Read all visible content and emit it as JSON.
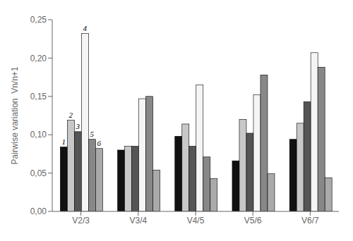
{
  "chart_data": {
    "type": "bar",
    "categories": [
      "V2/3",
      "V3/4",
      "V4/5",
      "V5/6",
      "V6/7"
    ],
    "series": [
      {
        "color": "#111111",
        "values": [
          0.084,
          0.08,
          0.098,
          0.066,
          0.094
        ]
      },
      {
        "color": "#c8c8c8",
        "values": [
          0.119,
          0.085,
          0.114,
          0.12,
          0.115
        ]
      },
      {
        "color": "#555555",
        "values": [
          0.104,
          0.085,
          0.085,
          0.102,
          0.143
        ]
      },
      {
        "color": "#f5f5f5",
        "values": [
          0.232,
          0.147,
          0.165,
          0.152,
          0.207
        ]
      },
      {
        "color": "#888888",
        "values": [
          0.094,
          0.15,
          0.071,
          0.178,
          0.188
        ]
      },
      {
        "color": "#aaaaaa",
        "values": [
          0.082,
          0.054,
          0.043,
          0.049,
          0.044
        ]
      }
    ],
    "ylabel": "Pairwise variation  Vn/n+1",
    "ylim": [
      0.0,
      0.25
    ],
    "yticks": [
      {
        "value": 0.0,
        "label": "0,00"
      },
      {
        "value": 0.05,
        "label": "0,05"
      },
      {
        "value": 0.1,
        "label": "0,10"
      },
      {
        "value": 0.15,
        "label": "0,15"
      },
      {
        "value": 0.2,
        "label": "0,20"
      },
      {
        "value": 0.25,
        "label": "0,25"
      }
    ],
    "annotations": [
      {
        "text": "1",
        "series": 0,
        "category": "V2/3"
      },
      {
        "text": "2",
        "series": 1,
        "category": "V2/3"
      },
      {
        "text": "3",
        "series": 2,
        "category": "V2/3"
      },
      {
        "text": "4",
        "series": 3,
        "category": "V2/3"
      },
      {
        "text": "5",
        "series": 4,
        "category": "V2/3"
      },
      {
        "text": "6",
        "series": 5,
        "category": "V2/3"
      }
    ]
  }
}
